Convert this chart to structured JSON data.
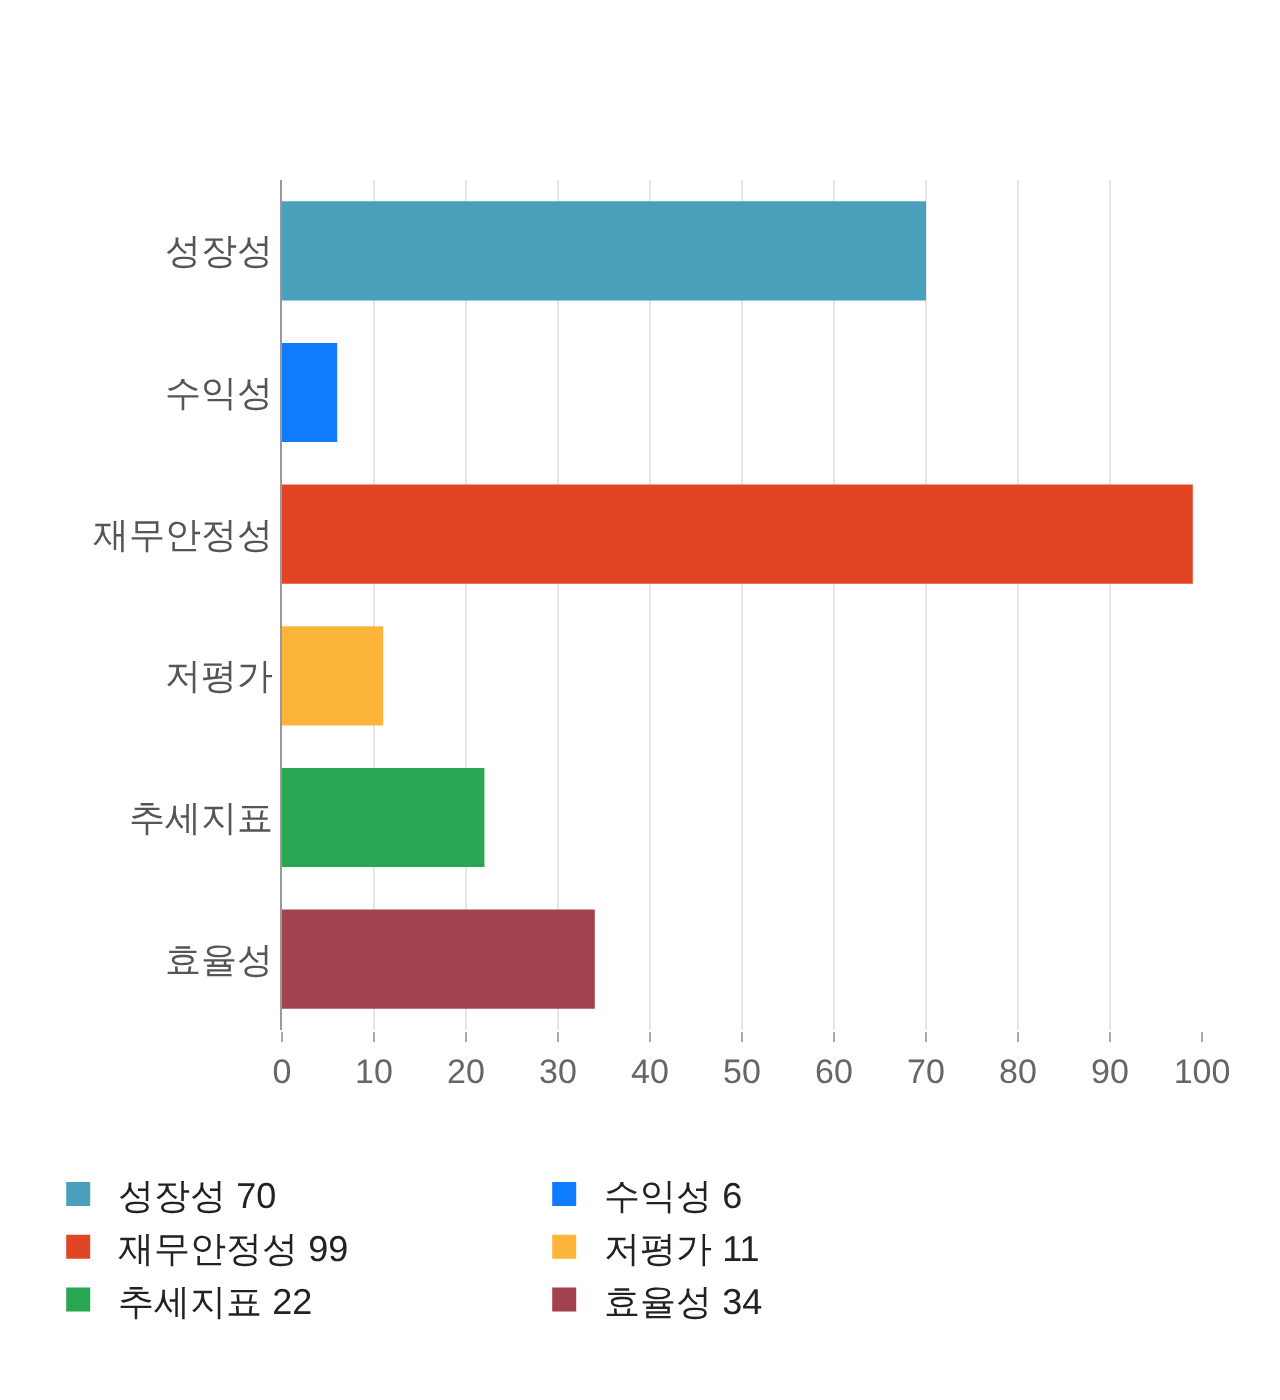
{
  "chart_data": {
    "type": "bar",
    "orientation": "horizontal",
    "categories": [
      "성장성",
      "수익성",
      "재무안정성",
      "저평가",
      "추세지표",
      "효율성"
    ],
    "series": [
      {
        "name": "성장성 70",
        "color": "#4aa0bb",
        "values": [
          70,
          null,
          null,
          null,
          null,
          null
        ]
      },
      {
        "name": "수익성 6",
        "color": "#0f7bff",
        "values": [
          null,
          6,
          null,
          null,
          null,
          null
        ]
      },
      {
        "name": "재무안정성 99",
        "color": "#e24523",
        "values": [
          null,
          null,
          99,
          null,
          null,
          null
        ]
      },
      {
        "name": "저평가 11",
        "color": "#fdb43a",
        "values": [
          null,
          null,
          null,
          11,
          null,
          null
        ]
      },
      {
        "name": "추세지표 22",
        "color": "#29a651",
        "values": [
          null,
          null,
          null,
          null,
          22,
          null
        ]
      },
      {
        "name": "효율성 34",
        "color": "#a4414e",
        "values": [
          null,
          null,
          null,
          null,
          null,
          34
        ]
      }
    ],
    "xlim": [
      0,
      100
    ],
    "xticks": [
      0,
      10,
      20,
      30,
      40,
      50,
      60,
      70,
      80,
      90,
      100
    ],
    "grid": "x",
    "legend": "bottom"
  }
}
